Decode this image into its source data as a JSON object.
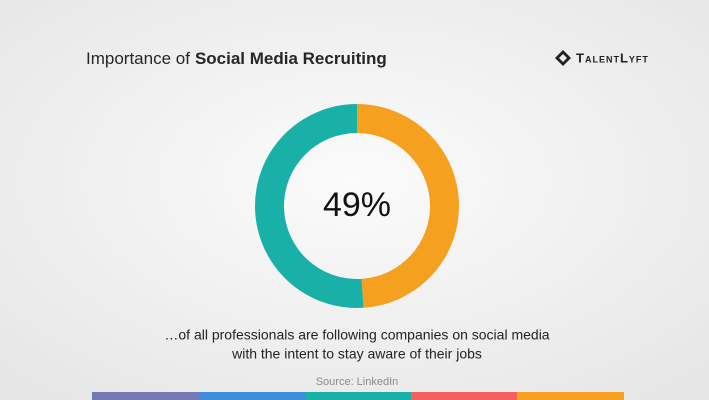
{
  "chart_data": {
    "type": "donut",
    "title": "Importance of",
    "title_emphasis": "Social Media Recruiting",
    "logo": "TalentLyft",
    "values": [
      49,
      51
    ],
    "value_labels": [
      "49%",
      null
    ],
    "colors": [
      "#f5a01f",
      "#19b0a8"
    ],
    "caption": [
      "…of all professionals are following companies on social media",
      "with the intent to stay aware of their jobs"
    ],
    "source": "Source: LinkedIn"
  }
}
